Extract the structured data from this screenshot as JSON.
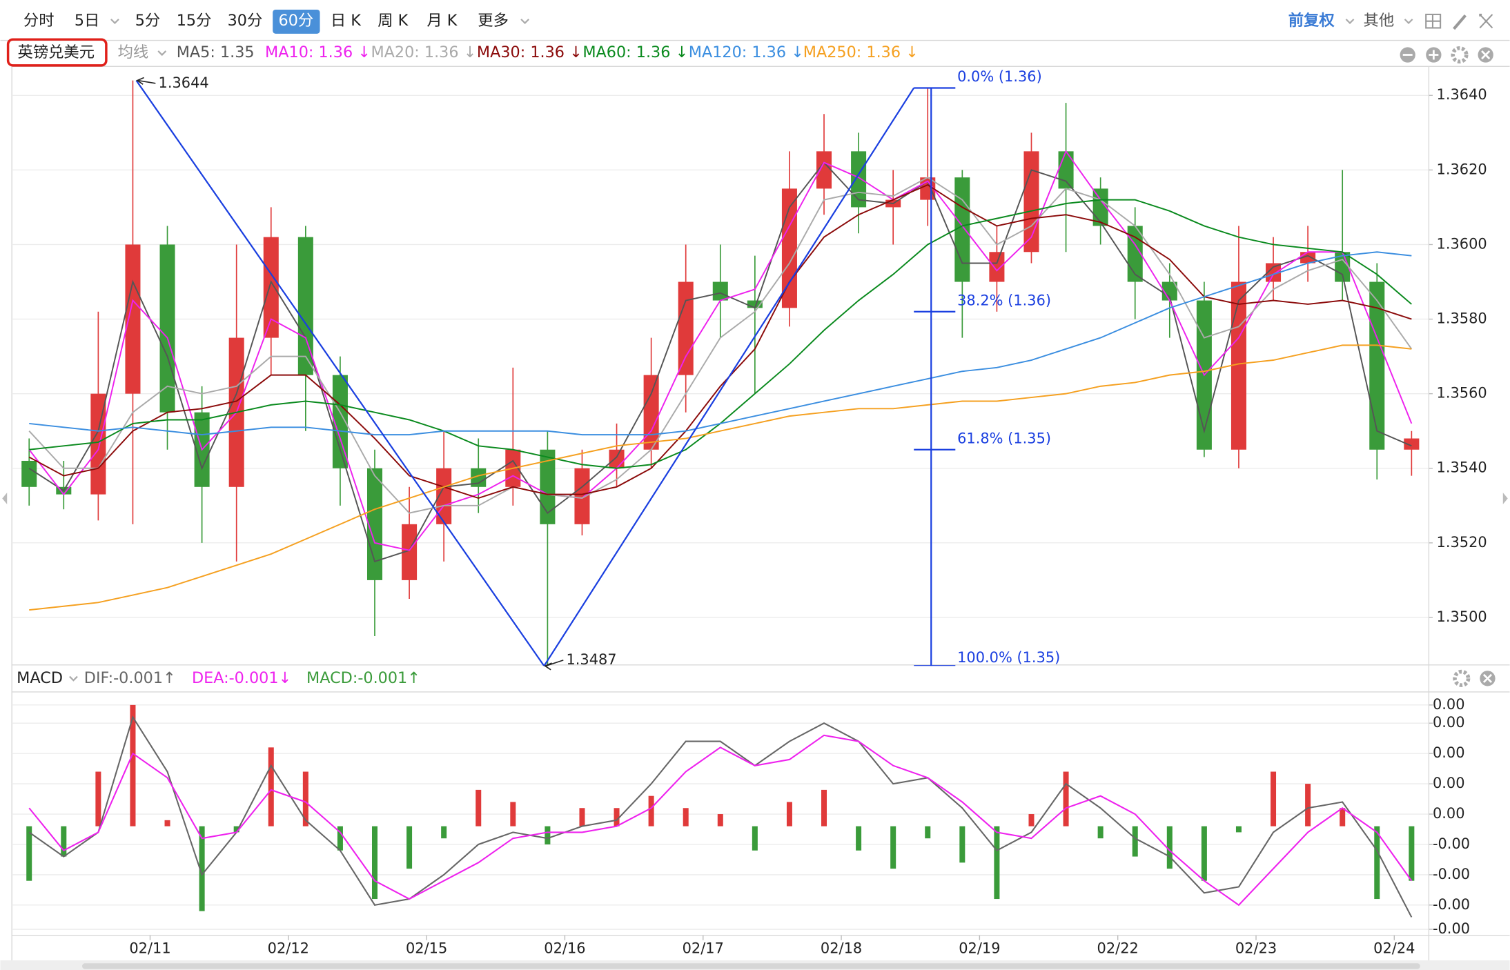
{
  "toolbar": {
    "periods": [
      "分时",
      "5日",
      "5分",
      "15分",
      "30分",
      "60分",
      "日 K",
      "周 K",
      "月 K",
      "更多"
    ],
    "active_period": "60分",
    "adjust": "前复权",
    "other": "其他",
    "symbol": "英镑兑美元",
    "ma_menu": "均线"
  },
  "chart_data": [
    {
      "type": "candlestick",
      "xlim": [
        0,
        41
      ],
      "ylim": [
        1.3487,
        1.3647
      ],
      "yticks": [
        {
          "value": 1.35,
          "label": "1.3500"
        },
        {
          "value": 1.352,
          "label": "1.3520"
        },
        {
          "value": 1.354,
          "label": "1.3540"
        },
        {
          "value": 1.356,
          "label": "1.3560"
        },
        {
          "value": 1.358,
          "label": "1.3580"
        },
        {
          "value": 1.36,
          "label": "1.3600"
        },
        {
          "value": 1.362,
          "label": "1.3620"
        },
        {
          "value": 1.364,
          "label": "1.3640"
        }
      ],
      "grid": true,
      "up_color": "#e03a3a",
      "down_color": "#3a9b3a",
      "open": [
        1.3542,
        1.3535,
        1.3533,
        1.356,
        1.36,
        1.3555,
        1.3535,
        1.3575,
        1.3602,
        1.3565,
        1.354,
        1.351,
        1.3525,
        1.354,
        1.3535,
        1.3545,
        1.3525,
        1.354,
        1.3545,
        1.3565,
        1.359,
        1.3585,
        1.3583,
        1.3615,
        1.3625,
        1.361,
        1.3612,
        1.3618,
        1.359,
        1.3598,
        1.3625,
        1.3615,
        1.3605,
        1.359,
        1.3585,
        1.3545,
        1.359,
        1.3595,
        1.3598,
        1.359,
        1.3545
      ],
      "high": [
        1.3548,
        1.3542,
        1.3582,
        1.3644,
        1.3605,
        1.3562,
        1.36,
        1.361,
        1.3605,
        1.357,
        1.3545,
        1.3535,
        1.355,
        1.3548,
        1.3567,
        1.355,
        1.3545,
        1.3552,
        1.3575,
        1.36,
        1.36,
        1.3597,
        1.3625,
        1.3635,
        1.363,
        1.362,
        1.3642,
        1.362,
        1.3605,
        1.363,
        1.3638,
        1.3618,
        1.361,
        1.3595,
        1.359,
        1.3605,
        1.3602,
        1.3605,
        1.362,
        1.3595,
        1.355
      ],
      "low": [
        1.353,
        1.3529,
        1.3526,
        1.3525,
        1.3545,
        1.352,
        1.3515,
        1.3565,
        1.355,
        1.353,
        1.3495,
        1.3505,
        1.3515,
        1.3528,
        1.353,
        1.3487,
        1.3522,
        1.3535,
        1.354,
        1.3555,
        1.3575,
        1.356,
        1.3578,
        1.3608,
        1.3603,
        1.36,
        1.3605,
        1.3575,
        1.3582,
        1.3595,
        1.3598,
        1.36,
        1.358,
        1.3575,
        1.3543,
        1.354,
        1.3585,
        1.359,
        1.3585,
        1.3537,
        1.3538
      ],
      "close": [
        1.3535,
        1.3533,
        1.356,
        1.36,
        1.3555,
        1.3535,
        1.3575,
        1.3602,
        1.3565,
        1.354,
        1.351,
        1.3525,
        1.354,
        1.3535,
        1.3545,
        1.3525,
        1.354,
        1.3545,
        1.3565,
        1.359,
        1.3585,
        1.3583,
        1.3615,
        1.3625,
        1.361,
        1.3612,
        1.3618,
        1.359,
        1.3598,
        1.3625,
        1.3615,
        1.3605,
        1.359,
        1.3585,
        1.3545,
        1.359,
        1.3595,
        1.3598,
        1.359,
        1.3545,
        1.3548
      ],
      "series": [
        {
          "name": "MA5: 1.35",
          "color": "#555555",
          "values": [
            1.354,
            1.3534,
            1.355,
            1.359,
            1.357,
            1.354,
            1.356,
            1.359,
            1.3575,
            1.3545,
            1.3515,
            1.3518,
            1.3535,
            1.3536,
            1.3542,
            1.3528,
            1.3535,
            1.3543,
            1.356,
            1.3585,
            1.3587,
            1.3583,
            1.361,
            1.3622,
            1.3612,
            1.3611,
            1.3617,
            1.3595,
            1.3595,
            1.362,
            1.3617,
            1.3606,
            1.3592,
            1.3586,
            1.355,
            1.3585,
            1.3594,
            1.3597,
            1.3592,
            1.355,
            1.3546
          ]
        },
        {
          "name": "MA10: 1.36 ↓",
          "color": "#ee22ee",
          "values": [
            1.3545,
            1.3533,
            1.3545,
            1.3585,
            1.3575,
            1.3545,
            1.3555,
            1.358,
            1.3575,
            1.3548,
            1.352,
            1.3518,
            1.353,
            1.3533,
            1.3538,
            1.3533,
            1.3532,
            1.354,
            1.355,
            1.357,
            1.3585,
            1.3588,
            1.3605,
            1.3622,
            1.3618,
            1.3612,
            1.3617,
            1.3605,
            1.3593,
            1.3602,
            1.3625,
            1.3612,
            1.36,
            1.3585,
            1.3565,
            1.3575,
            1.3592,
            1.3598,
            1.3598,
            1.3575,
            1.3552
          ]
        },
        {
          "name": "MA20: 1.36 ↓",
          "color": "#aaaaaa",
          "values": [
            1.355,
            1.354,
            1.354,
            1.3555,
            1.3562,
            1.356,
            1.3562,
            1.357,
            1.357,
            1.3555,
            1.3538,
            1.3528,
            1.353,
            1.353,
            1.3535,
            1.3533,
            1.3532,
            1.3537,
            1.3545,
            1.356,
            1.3575,
            1.3582,
            1.3595,
            1.3612,
            1.3614,
            1.3613,
            1.3618,
            1.3612,
            1.36,
            1.3605,
            1.3615,
            1.3612,
            1.3605,
            1.3592,
            1.3575,
            1.3578,
            1.3588,
            1.3593,
            1.3596,
            1.3585,
            1.3572
          ]
        },
        {
          "name": "MA30: 1.36 ↓",
          "color": "#8b0a0a",
          "values": [
            1.3543,
            1.3538,
            1.354,
            1.355,
            1.3555,
            1.3556,
            1.3558,
            1.3565,
            1.3565,
            1.3557,
            1.3548,
            1.3538,
            1.3535,
            1.3532,
            1.3535,
            1.3533,
            1.3533,
            1.3535,
            1.354,
            1.355,
            1.3562,
            1.3572,
            1.359,
            1.3602,
            1.3608,
            1.3612,
            1.3616,
            1.361,
            1.3605,
            1.3607,
            1.3608,
            1.3606,
            1.3602,
            1.3596,
            1.3586,
            1.3584,
            1.3585,
            1.3584,
            1.3585,
            1.3583,
            1.358
          ]
        },
        {
          "name": "MA60: 1.36 ↓",
          "color": "#0a8a1e",
          "values": [
            1.3545,
            1.3546,
            1.3547,
            1.3552,
            1.3553,
            1.3553,
            1.3555,
            1.3557,
            1.3558,
            1.3557,
            1.3555,
            1.3553,
            1.355,
            1.3546,
            1.3545,
            1.3543,
            1.3541,
            1.354,
            1.3541,
            1.3545,
            1.3552,
            1.356,
            1.3568,
            1.3577,
            1.3585,
            1.3592,
            1.36,
            1.3605,
            1.3607,
            1.3609,
            1.3611,
            1.3612,
            1.3612,
            1.3609,
            1.3605,
            1.3602,
            1.36,
            1.3599,
            1.3598,
            1.3592,
            1.3584
          ]
        },
        {
          "name": "MA120: 1.36 ↓",
          "color": "#3b8ee0",
          "values": [
            1.3552,
            1.3551,
            1.355,
            1.3551,
            1.355,
            1.3549,
            1.355,
            1.3551,
            1.3551,
            1.355,
            1.3549,
            1.3549,
            1.355,
            1.355,
            1.355,
            1.355,
            1.3549,
            1.3549,
            1.3549,
            1.355,
            1.3552,
            1.3554,
            1.3556,
            1.3558,
            1.356,
            1.3562,
            1.3564,
            1.3566,
            1.3567,
            1.3569,
            1.3572,
            1.3575,
            1.3579,
            1.3583,
            1.3586,
            1.3589,
            1.3592,
            1.3595,
            1.3597,
            1.3598,
            1.3597
          ]
        },
        {
          "name": "MA250: 1.36 ↓",
          "color": "#f5a020",
          "values": [
            1.3502,
            1.3503,
            1.3504,
            1.3506,
            1.3508,
            1.3511,
            1.3514,
            1.3517,
            1.3521,
            1.3525,
            1.3529,
            1.3532,
            1.3535,
            1.3538,
            1.354,
            1.3542,
            1.3544,
            1.3546,
            1.3547,
            1.3548,
            1.355,
            1.3552,
            1.3554,
            1.3555,
            1.3556,
            1.3556,
            1.3557,
            1.3558,
            1.3558,
            1.3559,
            1.356,
            1.3562,
            1.3563,
            1.3565,
            1.3566,
            1.3568,
            1.3569,
            1.3571,
            1.3573,
            1.3573,
            1.3572
          ]
        }
      ],
      "extremes": [
        {
          "x": 3.6,
          "y": 1.3644
        },
        {
          "x": 15.4,
          "y": 1.3487
        }
      ],
      "trend_line": {
        "color": "#1a3fe0",
        "x": [
          3.6,
          15.4,
          26.1
        ],
        "values": [
          1.3644,
          1.3487,
          1.3642
        ]
      },
      "fibonacci": {
        "color": "#1a3fe0",
        "x": [
          26.1,
          26.6,
          27.3
        ],
        "levels": [
          {
            "value": 1.3642,
            "label": "0.0% (1.36)"
          },
          {
            "value": 1.3582,
            "label": "38.2% (1.36)"
          },
          {
            "value": 1.3545,
            "label": "61.8% (1.35)"
          },
          {
            "value": 1.3487,
            "label": "100.0% (1.35)"
          }
        ]
      }
    },
    {
      "type": "macd",
      "title": "MACD",
      "xlim": [
        0,
        41
      ],
      "xticks": [
        {
          "value": 4,
          "label": "02/11"
        },
        {
          "value": 8,
          "label": "02/12"
        },
        {
          "value": 12,
          "label": "02/15"
        },
        {
          "value": 16,
          "label": "02/16"
        },
        {
          "value": 20,
          "label": "02/17"
        },
        {
          "value": 24,
          "label": "02/18"
        },
        {
          "value": 28,
          "label": "02/19"
        },
        {
          "value": 32,
          "label": "02/22"
        },
        {
          "value": 36,
          "label": "02/23"
        },
        {
          "value": 40,
          "label": "02/24"
        }
      ],
      "ylim": [
        -0.0018,
        0.0022
      ],
      "yticks": [
        {
          "value": 0.002,
          "label": "0.00"
        },
        {
          "value": 0.0017,
          "label": "0.00"
        },
        {
          "value": 0.0012,
          "label": "0.00"
        },
        {
          "value": 0.0007,
          "label": "0.00"
        },
        {
          "value": 0.0002,
          "label": "0.00"
        },
        {
          "value": -0.0003,
          "label": "-0.00"
        },
        {
          "value": -0.0008,
          "label": "-0.00"
        },
        {
          "value": -0.0013,
          "label": "-0.00"
        },
        {
          "value": -0.0017,
          "label": "-0.00"
        }
      ],
      "grid": true,
      "series": [
        {
          "name": "DIF:-0.001↑",
          "color": "#666666",
          "values": [
            -0.0001,
            -0.0005,
            -0.0001,
            0.0018,
            0.0009,
            -0.0008,
            -0.0001,
            0.001,
            0.0001,
            -0.0004,
            -0.0013,
            -0.0012,
            -0.0008,
            -0.0003,
            -0.0001,
            -0.0002,
            0,
            0.0001,
            0.0007,
            0.0014,
            0.0014,
            0.001,
            0.0014,
            0.0017,
            0.0014,
            0.0007,
            0.0008,
            0.0003,
            -0.0004,
            -0.0001,
            0.0007,
            0.0003,
            -0.0002,
            -0.0005,
            -0.0011,
            -0.001,
            -0.0001,
            0.0003,
            0.0004,
            -0.0004,
            -0.0015
          ]
        },
        {
          "name": "DEA:-0.001↓",
          "color": "#ee22ee",
          "values": [
            0.0003,
            -0.0004,
            -0.0001,
            0.0012,
            0.0008,
            -0.0002,
            -0.0001,
            0.0006,
            0.0004,
            -0.0001,
            -0.0009,
            -0.0012,
            -0.0009,
            -0.0006,
            -0.0002,
            -0.0001,
            -0.0001,
            0,
            0.0003,
            0.0009,
            0.0013,
            0.001,
            0.0011,
            0.0015,
            0.0014,
            0.001,
            0.0008,
            0.0004,
            -0.0001,
            -0.0002,
            0.0003,
            0.0005,
            0.0002,
            -0.0004,
            -0.0009,
            -0.0013,
            -0.0007,
            -0.0001,
            0.0003,
            -0.0001,
            -0.0009
          ]
        },
        {
          "name": "MACD:-0.001↑",
          "color": "#3a9b3a",
          "kind": "histogram",
          "up_color": "#e03a3a",
          "down_color": "#3a9b3a",
          "values": [
            -0.0009,
            -0.0005,
            0.0009,
            0.002,
            0.0001,
            -0.0014,
            -0.0001,
            0.0013,
            0.0009,
            -0.0004,
            -0.0012,
            -0.0007,
            -0.0002,
            0.0006,
            0.0004,
            -0.0003,
            0.0003,
            0.0003,
            0.0005,
            0.0003,
            0.0002,
            -0.0004,
            0.0004,
            0.0006,
            -0.0004,
            -0.0007,
            -0.0002,
            -0.0006,
            -0.0012,
            0.0002,
            0.0009,
            -0.0002,
            -0.0005,
            -0.0007,
            -0.0009,
            -0.0001,
            0.0009,
            0.0007,
            0.0003,
            -0.0012,
            -0.0009
          ]
        }
      ]
    }
  ]
}
